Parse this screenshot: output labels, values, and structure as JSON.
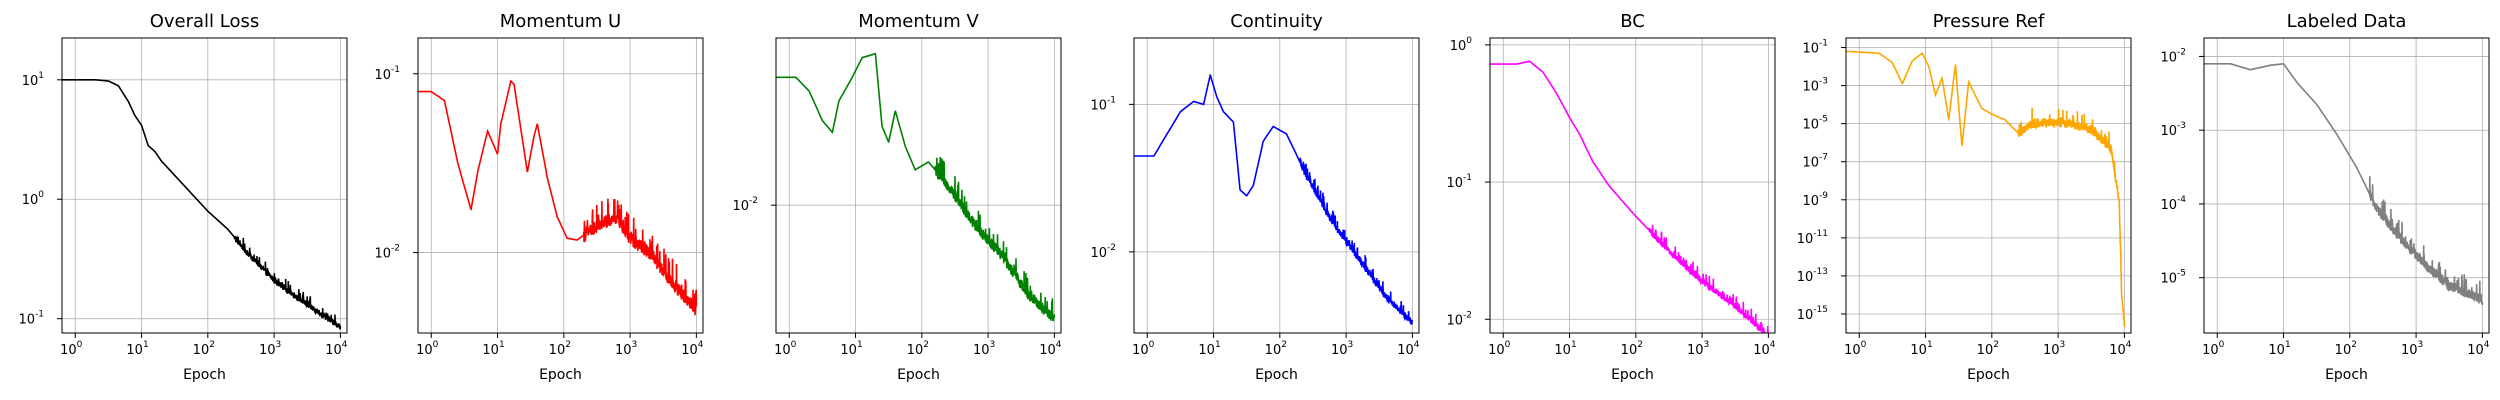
{
  "figure": {
    "panels": [
      {
        "title": "Overall Loss",
        "xlabel": "Epoch",
        "color": "#000000",
        "xlim_log10": [
          -0.2,
          4.1
        ],
        "ylim_log10": [
          -1.12,
          1.35
        ],
        "xticks_exp": [
          0,
          1,
          2,
          3,
          4
        ],
        "yticks_exp": [
          -1,
          0,
          1
        ],
        "noise_from_log10x": 2.4,
        "noise_amp": 0.05,
        "series_points": [
          [
            -0.2,
            1
          ],
          [
            0.3,
            1
          ],
          [
            0.5,
            0.99
          ],
          [
            0.65,
            0.95
          ],
          [
            0.8,
            0.82
          ],
          [
            0.9,
            0.7
          ],
          [
            1,
            0.62
          ],
          [
            1.1,
            0.45
          ],
          [
            1.2,
            0.4
          ],
          [
            1.3,
            0.32
          ],
          [
            1.5,
            0.2
          ],
          [
            1.7,
            0.08
          ],
          [
            2,
            -0.1
          ],
          [
            2.3,
            -0.25
          ],
          [
            2.6,
            -0.45
          ],
          [
            3,
            -0.68
          ],
          [
            3.5,
            -0.88
          ],
          [
            4,
            -1.07
          ]
        ]
      },
      {
        "title": "Momentum U",
        "xlabel": "Epoch",
        "color": "#ff0000",
        "xlim_log10": [
          -0.2,
          4.1
        ],
        "ylim_log10": [
          -2.45,
          -0.8
        ],
        "xticks_exp": [
          0,
          1,
          2,
          3,
          4
        ],
        "yticks_exp": [
          -2,
          -1
        ],
        "noise_from_log10x": 2.3,
        "noise_amp": 0.08,
        "series_points": [
          [
            -0.2,
            -1.1
          ],
          [
            0,
            -1.1
          ],
          [
            0.2,
            -1.15
          ],
          [
            0.4,
            -1.5
          ],
          [
            0.6,
            -1.76
          ],
          [
            0.7,
            -1.55
          ],
          [
            0.85,
            -1.32
          ],
          [
            1,
            -1.45
          ],
          [
            1.05,
            -1.28
          ],
          [
            1.2,
            -1.04
          ],
          [
            1.25,
            -1.06
          ],
          [
            1.45,
            -1.55
          ],
          [
            1.55,
            -1.35
          ],
          [
            1.6,
            -1.28
          ],
          [
            1.75,
            -1.58
          ],
          [
            1.9,
            -1.8
          ],
          [
            2.05,
            -1.92
          ],
          [
            2.2,
            -1.93
          ],
          [
            2.5,
            -1.85
          ],
          [
            2.8,
            -1.8
          ],
          [
            3,
            -1.92
          ],
          [
            3.3,
            -2
          ],
          [
            3.6,
            -2.15
          ],
          [
            4,
            -2.32
          ]
        ]
      },
      {
        "title": "Momentum V",
        "xlabel": "Epoch",
        "color": "#008000",
        "xlim_log10": [
          -0.2,
          4.1
        ],
        "ylim_log10": [
          -2.65,
          -1.15
        ],
        "xticks_exp": [
          0,
          1,
          2,
          3,
          4
        ],
        "yticks_exp": [
          -2
        ],
        "noise_from_log10x": 2.2,
        "noise_amp": 0.06,
        "series_points": [
          [
            -0.2,
            -1.35
          ],
          [
            0.1,
            -1.35
          ],
          [
            0.3,
            -1.42
          ],
          [
            0.5,
            -1.57
          ],
          [
            0.65,
            -1.63
          ],
          [
            0.75,
            -1.47
          ],
          [
            0.95,
            -1.35
          ],
          [
            1.1,
            -1.25
          ],
          [
            1.3,
            -1.23
          ],
          [
            1.4,
            -1.6
          ],
          [
            1.5,
            -1.68
          ],
          [
            1.6,
            -1.52
          ],
          [
            1.75,
            -1.7
          ],
          [
            1.9,
            -1.82
          ],
          [
            2.1,
            -1.78
          ],
          [
            2.4,
            -1.9
          ],
          [
            2.8,
            -2.1
          ],
          [
            3.2,
            -2.25
          ],
          [
            3.6,
            -2.45
          ],
          [
            4,
            -2.58
          ]
        ]
      },
      {
        "title": "Continuity",
        "xlabel": "Epoch",
        "color": "#0000ff",
        "xlim_log10": [
          -0.2,
          4.1
        ],
        "ylim_log10": [
          -2.55,
          -0.55
        ],
        "xticks_exp": [
          0,
          1,
          2,
          3,
          4
        ],
        "yticks_exp": [
          -2,
          -1
        ],
        "noise_from_log10x": 2.3,
        "noise_amp": 0.05,
        "series_points": [
          [
            -0.2,
            -1.35
          ],
          [
            0.1,
            -1.35
          ],
          [
            0.3,
            -1.2
          ],
          [
            0.5,
            -1.05
          ],
          [
            0.7,
            -0.98
          ],
          [
            0.85,
            -1
          ],
          [
            0.95,
            -0.8
          ],
          [
            1.05,
            -0.95
          ],
          [
            1.15,
            -1.05
          ],
          [
            1.3,
            -1.12
          ],
          [
            1.4,
            -1.58
          ],
          [
            1.5,
            -1.62
          ],
          [
            1.6,
            -1.55
          ],
          [
            1.75,
            -1.25
          ],
          [
            1.9,
            -1.15
          ],
          [
            2.1,
            -1.2
          ],
          [
            2.4,
            -1.48
          ],
          [
            2.8,
            -1.8
          ],
          [
            3.2,
            -2.05
          ],
          [
            3.6,
            -2.3
          ],
          [
            4,
            -2.48
          ]
        ]
      },
      {
        "title": "BC",
        "xlabel": "Epoch",
        "color": "#ff00ff",
        "xlim_log10": [
          -0.2,
          4.1
        ],
        "ylim_log10": [
          -2.1,
          0.05
        ],
        "xticks_exp": [
          0,
          1,
          2,
          3,
          4
        ],
        "yticks_exp": [
          -2,
          -1,
          0
        ],
        "noise_from_log10x": 2.2,
        "noise_amp": 0.05,
        "series_points": [
          [
            -0.2,
            -0.14
          ],
          [
            0.2,
            -0.14
          ],
          [
            0.4,
            -0.12
          ],
          [
            0.6,
            -0.2
          ],
          [
            0.8,
            -0.35
          ],
          [
            1,
            -0.53
          ],
          [
            1.15,
            -0.65
          ],
          [
            1.35,
            -0.85
          ],
          [
            1.6,
            -1.03
          ],
          [
            2,
            -1.25
          ],
          [
            2.5,
            -1.5
          ],
          [
            3,
            -1.72
          ],
          [
            3.5,
            -1.9
          ],
          [
            4,
            -2.12
          ]
        ]
      },
      {
        "title": "Pressure Ref",
        "xlabel": "Epoch",
        "color": "#ffa500",
        "xlim_log10": [
          -0.2,
          4.1
        ],
        "ylim_log10": [
          -16,
          -0.5
        ],
        "xticks_exp": [
          0,
          1,
          2,
          3,
          4
        ],
        "yticks_exp": [
          -15,
          -13,
          -11,
          -9,
          -7,
          -5,
          -3,
          -1
        ],
        "noise_from_log10x": 2.4,
        "noise_amp": 0.5,
        "series_points": [
          [
            -0.2,
            -1.2
          ],
          [
            0.3,
            -1.3
          ],
          [
            0.5,
            -1.8
          ],
          [
            0.65,
            -2.9
          ],
          [
            0.8,
            -1.7
          ],
          [
            0.95,
            -1.3
          ],
          [
            1.05,
            -2
          ],
          [
            1.15,
            -3.5
          ],
          [
            1.25,
            -2.6
          ],
          [
            1.35,
            -4.8
          ],
          [
            1.45,
            -1.9
          ],
          [
            1.55,
            -6.2
          ],
          [
            1.65,
            -2.8
          ],
          [
            1.75,
            -3.5
          ],
          [
            1.85,
            -4.2
          ],
          [
            2,
            -4.5
          ],
          [
            2.2,
            -4.8
          ],
          [
            2.4,
            -5.5
          ],
          [
            2.6,
            -5
          ],
          [
            2.9,
            -4.9
          ],
          [
            3.2,
            -5
          ],
          [
            3.5,
            -5.3
          ],
          [
            3.8,
            -6.3
          ],
          [
            3.92,
            -9
          ],
          [
            3.96,
            -14
          ],
          [
            4,
            -15.5
          ]
        ]
      },
      {
        "title": "Labeled Data",
        "xlabel": "Epoch",
        "color": "#808080",
        "xlim_log10": [
          -0.2,
          4.1
        ],
        "ylim_log10": [
          -5.75,
          -1.75
        ],
        "xticks_exp": [
          0,
          1,
          2,
          3,
          4
        ],
        "yticks_exp": [
          -5,
          -4,
          -3,
          -2
        ],
        "noise_from_log10x": 2.3,
        "noise_amp": 0.15,
        "series_points": [
          [
            -0.2,
            -2.1
          ],
          [
            0.2,
            -2.1
          ],
          [
            0.5,
            -2.18
          ],
          [
            0.8,
            -2.12
          ],
          [
            1,
            -2.1
          ],
          [
            1.2,
            -2.35
          ],
          [
            1.5,
            -2.65
          ],
          [
            1.8,
            -3.05
          ],
          [
            2.1,
            -3.5
          ],
          [
            2.4,
            -4.05
          ],
          [
            2.8,
            -4.5
          ],
          [
            3.2,
            -4.88
          ],
          [
            3.5,
            -5.1
          ],
          [
            4,
            -5.3
          ]
        ]
      }
    ]
  }
}
